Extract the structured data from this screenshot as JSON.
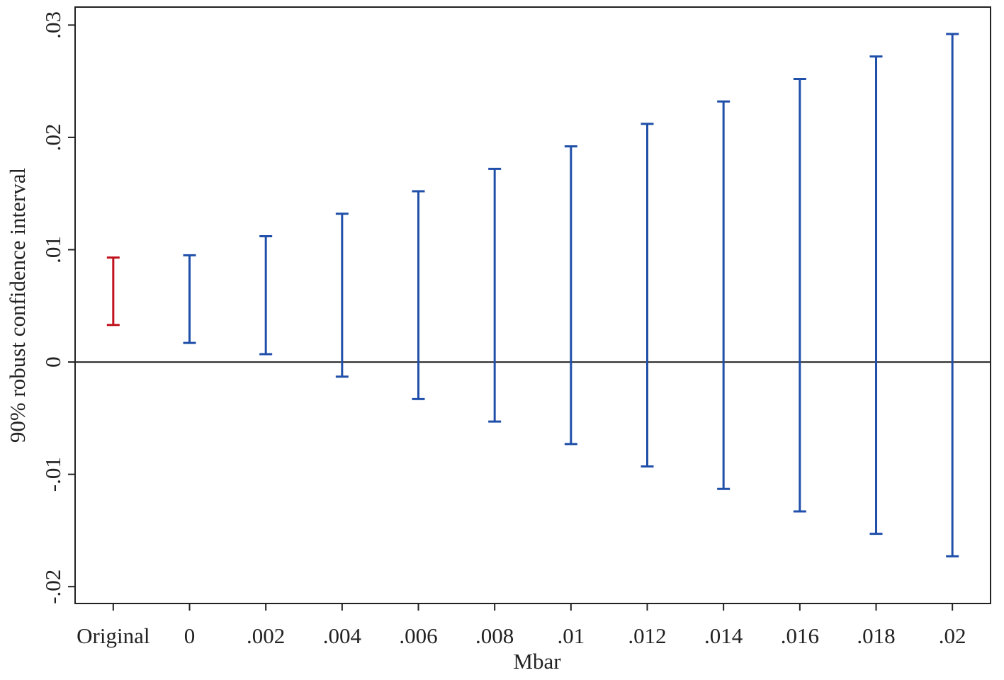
{
  "chart_data": {
    "type": "range",
    "x_label": "Mbar",
    "y_label": "90% robust confidence interval",
    "categories": [
      "Original",
      "0",
      ".002",
      ".004",
      ".006",
      ".008",
      ".01",
      ".012",
      ".014",
      ".016",
      ".018",
      ".02"
    ],
    "low": [
      0.0033,
      0.0017,
      0.0007,
      -0.0013,
      -0.0033,
      -0.0053,
      -0.0073,
      -0.0093,
      -0.0113,
      -0.0133,
      -0.0153,
      -0.0173
    ],
    "high": [
      0.0093,
      0.0095,
      0.0112,
      0.0132,
      0.0152,
      0.0172,
      0.0192,
      0.0212,
      0.0232,
      0.0252,
      0.0272,
      0.0292
    ],
    "colors": [
      "#c0121c",
      "#1f4fa8",
      "#1f4fa8",
      "#1f4fa8",
      "#1f4fa8",
      "#1f4fa8",
      "#1f4fa8",
      "#1f4fa8",
      "#1f4fa8",
      "#1f4fa8",
      "#1f4fa8",
      "#1f4fa8"
    ],
    "reference_line": 0,
    "ylim": [
      -0.0215,
      0.0316
    ],
    "yticks": [
      {
        "value": -0.02,
        "label": "-.02"
      },
      {
        "value": -0.01,
        "label": "-.01"
      },
      0,
      {
        "value": 0.01,
        "label": ".01"
      },
      {
        "value": 0.02,
        "label": ".02"
      },
      {
        "value": 0.03,
        "label": ".03"
      }
    ]
  }
}
